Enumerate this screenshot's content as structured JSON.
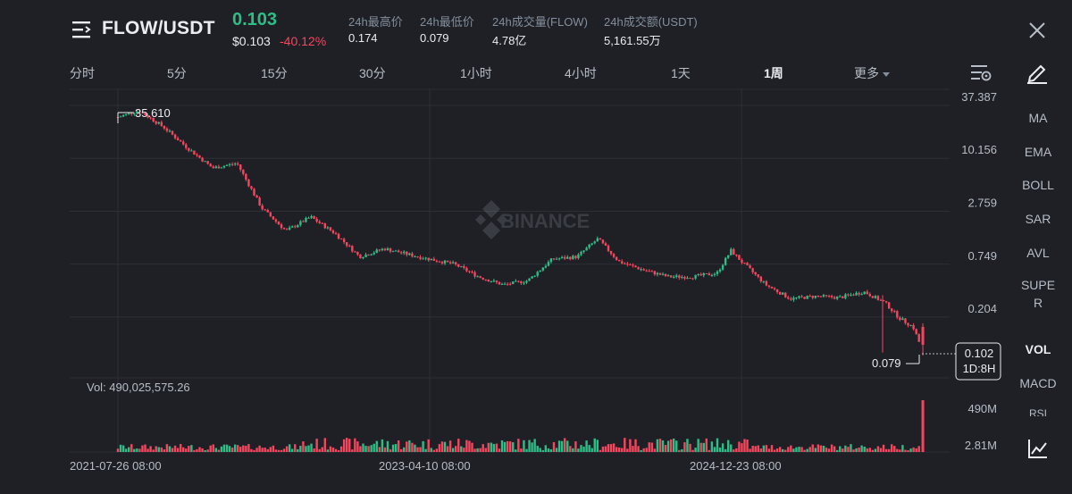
{
  "header": {
    "pair": "FLOW/USDT",
    "last_price": "0.103",
    "usd_price": "$0.103",
    "change_pct": "-40.12%",
    "stats": [
      {
        "label": "24h最高价",
        "value": "0.174"
      },
      {
        "label": "24h最低价",
        "value": "0.079"
      },
      {
        "label": "24h成交量(FLOW)",
        "value": "4.78亿"
      },
      {
        "label": "24h成交额(USDT)",
        "value": "5,161.55万"
      }
    ]
  },
  "tabs": {
    "items": [
      "分时",
      "5分",
      "15分",
      "30分",
      "1小时",
      "4小时",
      "1天",
      "1周"
    ],
    "active": "1周",
    "more_label": "更多"
  },
  "sidebar": {
    "items": [
      "MA",
      "EMA",
      "BOLL",
      "SAR",
      "AVL",
      "SUPE",
      "R",
      "VOL",
      "MACD",
      "RSI"
    ],
    "active": "VOL"
  },
  "chart": {
    "price_ticks": [
      "37.387",
      "10.156",
      "2.759",
      "0.749",
      "0.204"
    ],
    "volume_ticks": [
      "490M",
      "2.81M"
    ],
    "high_marker": "35.610",
    "low_marker": "0.079",
    "current_price_tag": "0.102",
    "countdown": "1D:8H",
    "volume_label": "Vol: 490,025,575.26",
    "x_labels": [
      "2021-07-26 08:00",
      "2023-04-10 08:00",
      "2024-12-23 08:00"
    ],
    "watermark": "BINANCE"
  },
  "colors": {
    "background": "#1e2026",
    "up": "#2ebd85",
    "down": "#f6465d",
    "text_secondary": "#848e9c"
  },
  "chart_data": {
    "type": "candlestick",
    "interval": "1周",
    "scale": "log",
    "y_ticks": [
      37.387,
      10.156,
      2.759,
      0.749,
      0.204
    ],
    "y_range": [
      0.079,
      37.387
    ],
    "x_ticks": [
      "2021-07-26 08:00",
      "2023-04-10 08:00",
      "2024-12-23 08:00"
    ],
    "close_path": [
      {
        "date": "2021-07-26",
        "close": 28
      },
      {
        "date": "2021-09-06",
        "close": 33
      },
      {
        "date": "2021-10-25",
        "close": 22
      },
      {
        "date": "2021-12-13",
        "close": 13
      },
      {
        "date": "2022-01-31",
        "close": 8
      },
      {
        "date": "2022-03-21",
        "close": 9
      },
      {
        "date": "2022-05-09",
        "close": 3.0
      },
      {
        "date": "2022-06-27",
        "close": 1.7
      },
      {
        "date": "2022-08-15",
        "close": 2.4
      },
      {
        "date": "2022-10-03",
        "close": 1.6
      },
      {
        "date": "2022-11-21",
        "close": 0.9
      },
      {
        "date": "2023-01-09",
        "close": 1.1
      },
      {
        "date": "2023-02-27",
        "close": 0.95
      },
      {
        "date": "2023-04-10",
        "close": 0.85
      },
      {
        "date": "2023-05-29",
        "close": 0.75
      },
      {
        "date": "2023-07-17",
        "close": 0.55
      },
      {
        "date": "2023-09-04",
        "close": 0.45
      },
      {
        "date": "2023-10-23",
        "close": 0.5
      },
      {
        "date": "2023-12-11",
        "close": 0.85
      },
      {
        "date": "2024-01-29",
        "close": 0.9
      },
      {
        "date": "2024-03-11",
        "close": 1.4
      },
      {
        "date": "2024-04-22",
        "close": 0.8
      },
      {
        "date": "2024-06-10",
        "close": 0.65
      },
      {
        "date": "2024-07-29",
        "close": 0.55
      },
      {
        "date": "2024-09-16",
        "close": 0.55
      },
      {
        "date": "2024-11-04",
        "close": 0.6
      },
      {
        "date": "2024-12-02",
        "close": 1.05
      },
      {
        "date": "2024-12-23",
        "close": 0.8
      },
      {
        "date": "2025-02-10",
        "close": 0.45
      },
      {
        "date": "2025-03-31",
        "close": 0.32
      },
      {
        "date": "2025-05-19",
        "close": 0.34
      },
      {
        "date": "2025-07-07",
        "close": 0.33
      },
      {
        "date": "2025-08-25",
        "close": 0.38
      },
      {
        "date": "2025-10-06",
        "close": 0.29
      },
      {
        "date": "2025-11-03",
        "close": 0.2
      },
      {
        "date": "2025-12-01",
        "close": 0.16
      },
      {
        "date": "2025-12-15",
        "close": 0.103
      }
    ],
    "volume": {
      "max_label": "490M",
      "min_label": "2.81M",
      "last": 490025575.26
    }
  }
}
